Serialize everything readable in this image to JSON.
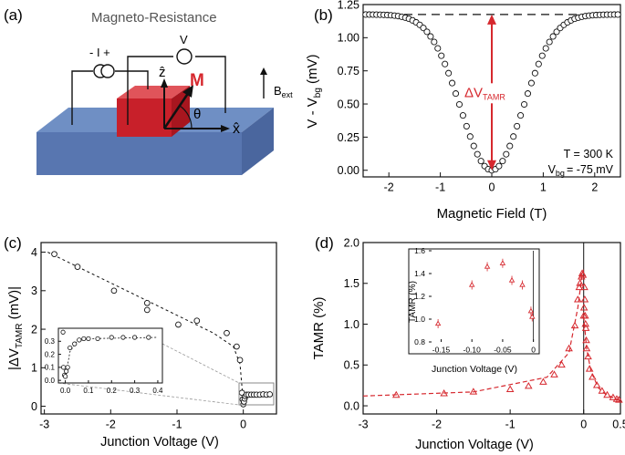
{
  "panels": {
    "a": {
      "label": "(a)",
      "title": "Magneto-Resistance",
      "current_source": "- I +",
      "voltmeter": "V",
      "z_axis": "ẑ",
      "magnetization": "M",
      "angle": "θ",
      "x_axis": "x̂",
      "field_label": "B",
      "field_sub": "ext"
    },
    "b": {
      "label": "(b)"
    },
    "c": {
      "label": "(c)"
    },
    "d": {
      "label": "(d)"
    }
  },
  "colors": {
    "red": "#d6282e",
    "block": "#c8202a",
    "slab_top": "#6f8fc4",
    "slab_front": "#5876b0",
    "slab_side": "#4a669e"
  },
  "chart_data": [
    {
      "id": "b",
      "type": "scatter",
      "title": "",
      "xlabel": "Magnetic Field (T)",
      "ylabel_main": "V - V",
      "ylabel_sub": "bg",
      "ylabel_unit": " (mV)",
      "xlim": [
        -2.5,
        2.5
      ],
      "ylim": [
        -0.05,
        1.25
      ],
      "xticks": [
        "-2",
        "-1",
        "0",
        "1",
        "2"
      ],
      "xtick_values": [
        -2,
        -1,
        0,
        1,
        2
      ],
      "yticks": [
        "0.00",
        "0.25",
        "0.50",
        "0.75",
        "1.00",
        "1.25"
      ],
      "ytick_values": [
        0,
        0.25,
        0.5,
        0.75,
        1.0,
        1.25
      ],
      "series": [
        {
          "name": "V - Vbg",
          "model": "1.175*(1-exp(-(B/0.85)^2))",
          "x_start": -2.45,
          "x_end": 2.45,
          "x_step": 0.07
        }
      ],
      "reference_line": 1.175,
      "annotation_main": "ΔV",
      "annotation_sub": "TAMR",
      "temperature_note": "T = 300 K",
      "bias_note_main": "V",
      "bias_note_sub": "bg",
      "bias_note_value": "= -75 mV"
    },
    {
      "id": "c",
      "type": "scatter",
      "xlabel": "Junction Voltage (V)",
      "ylabel_main": "|ΔV",
      "ylabel_sub": "TAMR",
      "ylabel_unit": " (mV)|",
      "xlim": [
        -3.05,
        0.5
      ],
      "ylim": [
        -0.2,
        4.25
      ],
      "xticks": [
        "-3",
        "-2",
        "-1",
        "0"
      ],
      "xtick_values": [
        -3,
        -2,
        -1,
        0
      ],
      "yticks": [
        "0",
        "1",
        "2",
        "3",
        "4"
      ],
      "ytick_values": [
        0,
        1,
        2,
        3,
        4
      ],
      "points": [
        [
          -2.85,
          3.95
        ],
        [
          -2.5,
          3.62
        ],
        [
          -1.95,
          3.0
        ],
        [
          -1.45,
          2.68
        ],
        [
          -1.45,
          2.5
        ],
        [
          -0.98,
          2.12
        ],
        [
          -0.7,
          2.22
        ],
        [
          -0.25,
          1.9
        ],
        [
          -0.1,
          1.55
        ],
        [
          -0.05,
          1.2
        ],
        [
          -0.02,
          0.35
        ],
        [
          -0.01,
          0.18
        ],
        [
          0.0,
          0.05
        ],
        [
          0.01,
          0.12
        ],
        [
          0.02,
          0.2
        ],
        [
          0.03,
          0.26
        ],
        [
          0.05,
          0.3
        ],
        [
          0.08,
          0.3
        ],
        [
          0.12,
          0.3
        ],
        [
          0.16,
          0.3
        ],
        [
          0.2,
          0.3
        ],
        [
          0.25,
          0.3
        ],
        [
          0.3,
          0.31
        ],
        [
          0.35,
          0.3
        ],
        [
          0.4,
          0.31
        ]
      ],
      "fit_line": [
        [
          -2.95,
          4.0
        ],
        [
          -0.45,
          1.9
        ],
        [
          -0.15,
          1.55
        ],
        [
          -0.05,
          1.1
        ],
        [
          -0.01,
          0.3
        ],
        [
          0.0,
          0.05
        ]
      ],
      "inset": {
        "xlim": [
          -0.03,
          0.42
        ],
        "ylim": [
          -0.02,
          0.4
        ],
        "xticks": [
          "0.0",
          "0.1",
          "0.2",
          "0.3",
          "0.4"
        ],
        "xtick_values": [
          0,
          0.1,
          0.2,
          0.3,
          0.4
        ],
        "yticks": [
          "0.0",
          "0.1",
          "0.2",
          "0.3"
        ],
        "ytick_values": [
          0,
          0.1,
          0.2,
          0.3
        ],
        "points": [
          [
            -0.01,
            0.37
          ],
          [
            -0.008,
            0.1
          ],
          [
            -0.004,
            0.04
          ],
          [
            0.0,
            0.03
          ],
          [
            0.004,
            0.07
          ],
          [
            0.01,
            0.1
          ],
          [
            0.02,
            0.25
          ],
          [
            0.04,
            0.28
          ],
          [
            0.06,
            0.31
          ],
          [
            0.08,
            0.32
          ],
          [
            0.1,
            0.32
          ],
          [
            0.14,
            0.32
          ],
          [
            0.2,
            0.33
          ],
          [
            0.25,
            0.33
          ],
          [
            0.3,
            0.33
          ],
          [
            0.36,
            0.33
          ]
        ],
        "fit_line": [
          [
            0.0,
            0.02
          ],
          [
            0.02,
            0.22
          ],
          [
            0.05,
            0.3
          ],
          [
            0.1,
            0.32
          ],
          [
            0.4,
            0.33
          ]
        ]
      }
    },
    {
      "id": "d",
      "type": "scatter",
      "xlabel": "Junction Voltage (V)",
      "ylabel": "TAMR  (%)",
      "xlim": [
        -3.0,
        0.5
      ],
      "ylim": [
        -0.1,
        2.0
      ],
      "xticks": [
        "-3",
        "-2",
        "-1",
        "0",
        "0.5"
      ],
      "xtick_values": [
        -3,
        -2,
        -1,
        0,
        0.5
      ],
      "yticks": [
        "0.0",
        "0.5",
        "1.0",
        "1.5",
        "2.0"
      ],
      "ytick_values": [
        0,
        0.5,
        1.0,
        1.5,
        2.0
      ],
      "points": [
        [
          -2.55,
          0.13
        ],
        [
          -1.9,
          0.15
        ],
        [
          -1.5,
          0.17
        ],
        [
          -1.0,
          0.2
        ],
        [
          -0.75,
          0.24
        ],
        [
          -0.55,
          0.29
        ],
        [
          -0.4,
          0.38
        ],
        [
          -0.3,
          0.5
        ],
        [
          -0.2,
          0.7
        ],
        [
          -0.12,
          0.98
        ],
        [
          -0.08,
          1.3
        ],
        [
          -0.06,
          1.45
        ],
        [
          -0.05,
          1.5
        ],
        [
          -0.03,
          1.58
        ],
        [
          -0.02,
          1.62
        ],
        [
          -0.01,
          1.6
        ],
        [
          0.0,
          1.1
        ],
        [
          0.005,
          1.2
        ],
        [
          0.01,
          1.45
        ],
        [
          0.015,
          1.3
        ],
        [
          0.02,
          1.1
        ],
        [
          0.025,
          1.0
        ],
        [
          0.03,
          0.95
        ],
        [
          0.035,
          0.8
        ],
        [
          0.04,
          0.7
        ],
        [
          0.06,
          0.6
        ],
        [
          0.08,
          0.45
        ],
        [
          0.12,
          0.35
        ],
        [
          0.18,
          0.25
        ],
        [
          0.25,
          0.18
        ],
        [
          0.32,
          0.13
        ],
        [
          0.4,
          0.1
        ],
        [
          0.45,
          0.08
        ],
        [
          0.48,
          0.07
        ]
      ],
      "fit_line": [
        [
          -3.0,
          0.12
        ],
        [
          -1.5,
          0.17
        ],
        [
          -0.5,
          0.35
        ],
        [
          -0.2,
          0.65
        ],
        [
          -0.08,
          1.2
        ],
        [
          -0.02,
          1.62
        ],
        [
          -0.005,
          1.65
        ],
        [
          0.0,
          1.6
        ]
      ],
      "fit_line_right": [
        [
          0.0,
          1.1
        ],
        [
          0.04,
          0.7
        ],
        [
          0.1,
          0.42
        ],
        [
          0.2,
          0.22
        ],
        [
          0.3,
          0.14
        ],
        [
          0.5,
          0.06
        ]
      ],
      "inset": {
        "xlabel": "Junction Voltage (V)",
        "ylabel": "TAMR (%)",
        "xlim": [
          -0.17,
          0.005
        ],
        "ylim": [
          0.8,
          1.6
        ],
        "xticks": [
          "-0.15",
          "-0.10",
          "-0.05",
          "0"
        ],
        "xtick_values": [
          -0.15,
          -0.1,
          -0.05,
          0
        ],
        "yticks": [
          "0.8",
          "1.0",
          "1.2",
          "1.4",
          "1.6"
        ],
        "ytick_values": [
          0.8,
          1.0,
          1.2,
          1.4,
          1.6
        ],
        "points": [
          [
            -0.155,
            0.96
          ],
          [
            -0.1,
            1.3
          ],
          [
            -0.075,
            1.46
          ],
          [
            -0.05,
            1.49
          ],
          [
            -0.035,
            1.34
          ],
          [
            -0.018,
            1.3
          ],
          [
            -0.004,
            1.07
          ],
          [
            -0.002,
            1.02
          ]
        ]
      }
    }
  ]
}
